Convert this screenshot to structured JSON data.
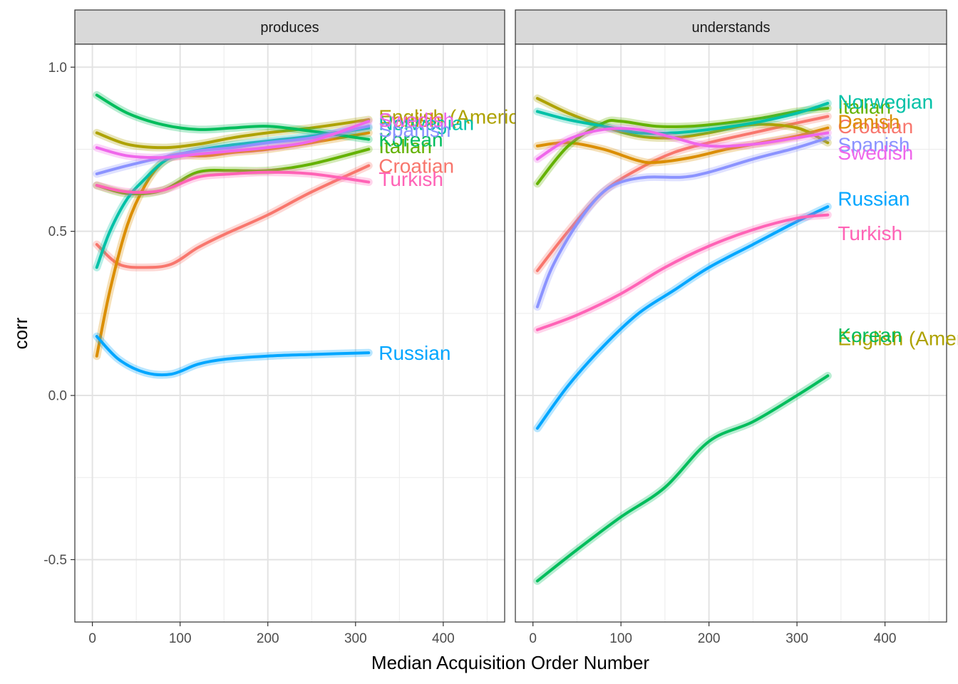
{
  "chart_data": {
    "type": "line",
    "xlabel": "Median Acquisition Order Number",
    "ylabel": "corr",
    "xlim": [
      -20,
      470
    ],
    "ylim": [
      -0.69,
      1.07
    ],
    "x_ticks": [
      0,
      100,
      200,
      300,
      400
    ],
    "x_tick_labels": [
      "0",
      "100",
      "200",
      "300",
      "400"
    ],
    "y_ticks": [
      -0.5,
      0,
      0.5,
      1.0
    ],
    "y_tick_labels": [
      "-0.5",
      "0.0",
      "0.5",
      "1.0"
    ],
    "grid": true,
    "legend": "direct labels at line ends",
    "colors": {
      "Croatian": "#F8766D",
      "Danish": "#DB8E00",
      "English (American)": "#AEA200",
      "Italian": "#64B200",
      "Korean": "#00BD5C",
      "Norwegian": "#00C1A7",
      "Russian": "#00A6FF",
      "Spanish": "#8B93FF",
      "Swedish": "#EF67EB",
      "Turkish": "#FF63B6"
    },
    "panels": [
      {
        "strip": "produces",
        "series": [
          {
            "name": "Croatian",
            "label": "Croatian",
            "label_y": 0.7,
            "x": [
              5,
              30,
              60,
              90,
              120,
              150,
              200,
              250,
              315
            ],
            "y": [
              0.46,
              0.4,
              0.39,
              0.4,
              0.45,
              0.49,
              0.55,
              0.62,
              0.7
            ]
          },
          {
            "name": "Danish",
            "label": "Danish",
            "label_y": 0.84,
            "x": [
              5,
              20,
              40,
              60,
              80,
              100,
              130,
              160,
              200,
              250,
              315
            ],
            "y": [
              0.12,
              0.32,
              0.52,
              0.64,
              0.71,
              0.73,
              0.73,
              0.74,
              0.75,
              0.77,
              0.8
            ]
          },
          {
            "name": "English (American)",
            "label": "English (American)",
            "label_y": 0.85,
            "x": [
              5,
              40,
              80,
              120,
              160,
              200,
              250,
              315
            ],
            "y": [
              0.8,
              0.765,
              0.755,
              0.765,
              0.785,
              0.8,
              0.815,
              0.84
            ]
          },
          {
            "name": "Italian",
            "label": "Italian",
            "label_y": 0.76,
            "x": [
              5,
              40,
              80,
              120,
              160,
              200,
              250,
              315
            ],
            "y": [
              0.64,
              0.615,
              0.625,
              0.68,
              0.685,
              0.685,
              0.705,
              0.75
            ]
          },
          {
            "name": "Korean",
            "label": "Korean",
            "label_y": 0.78,
            "x": [
              5,
              40,
              80,
              120,
              160,
              200,
              250,
              315
            ],
            "y": [
              0.915,
              0.86,
              0.825,
              0.81,
              0.815,
              0.82,
              0.805,
              0.78
            ]
          },
          {
            "name": "Norwegian",
            "label": "Norwegian",
            "label_y": 0.83,
            "x": [
              5,
              20,
              40,
              60,
              80,
              100,
              150,
              200,
              250,
              315
            ],
            "y": [
              0.39,
              0.5,
              0.6,
              0.66,
              0.71,
              0.735,
              0.76,
              0.775,
              0.79,
              0.815
            ]
          },
          {
            "name": "Russian",
            "label": "Russian",
            "label_y": 0.13,
            "x": [
              5,
              30,
              60,
              90,
              120,
              150,
              200,
              250,
              315
            ],
            "y": [
              0.18,
              0.11,
              0.07,
              0.065,
              0.095,
              0.11,
              0.12,
              0.125,
              0.13
            ]
          },
          {
            "name": "Spanish",
            "label": "Spanish",
            "label_y": 0.81,
            "x": [
              5,
              40,
              80,
              120,
              160,
              200,
              250,
              315
            ],
            "y": [
              0.675,
              0.7,
              0.725,
              0.745,
              0.755,
              0.77,
              0.785,
              0.82
            ]
          },
          {
            "name": "Swedish",
            "label": "Swedish",
            "label_y": 0.84,
            "x": [
              5,
              40,
              80,
              120,
              160,
              200,
              250,
              315
            ],
            "y": [
              0.755,
              0.73,
              0.725,
              0.735,
              0.745,
              0.755,
              0.775,
              0.835
            ]
          },
          {
            "name": "Turkish",
            "label": "Turkish",
            "label_y": 0.66,
            "x": [
              5,
              40,
              80,
              120,
              160,
              200,
              250,
              315
            ],
            "y": [
              0.64,
              0.62,
              0.625,
              0.665,
              0.675,
              0.68,
              0.675,
              0.65
            ]
          }
        ]
      },
      {
        "strip": "understands",
        "series": [
          {
            "name": "Croatian",
            "label": "Croatian",
            "label_y": 0.82,
            "x": [
              5,
              40,
              80,
              120,
              160,
              200,
              250,
              300,
              335
            ],
            "y": [
              0.38,
              0.5,
              0.62,
              0.69,
              0.74,
              0.77,
              0.8,
              0.83,
              0.85
            ]
          },
          {
            "name": "Danish",
            "label": "Danish",
            "label_y": 0.835,
            "x": [
              5,
              40,
              80,
              120,
              140,
              180,
              220,
              260,
              300,
              335
            ],
            "y": [
              0.76,
              0.77,
              0.75,
              0.715,
              0.71,
              0.725,
              0.75,
              0.77,
              0.79,
              0.815
            ]
          },
          {
            "name": "English (American)",
            "label": "English (American)",
            "label_y": 0.175,
            "x": [
              5,
              40,
              80,
              120,
              160,
              200,
              250,
              300,
              335
            ],
            "y": [
              0.905,
              0.86,
              0.82,
              0.79,
              0.785,
              0.8,
              0.825,
              0.815,
              0.77
            ]
          },
          {
            "name": "Italian",
            "label": "Italian",
            "label_y": 0.88,
            "x": [
              5,
              40,
              80,
              100,
              140,
              180,
              220,
              260,
              300,
              335
            ],
            "y": [
              0.645,
              0.76,
              0.83,
              0.835,
              0.82,
              0.82,
              0.83,
              0.845,
              0.865,
              0.875
            ]
          },
          {
            "name": "Korean",
            "label": "Korean",
            "label_y": 0.185,
            "x": [
              5,
              50,
              100,
              150,
              200,
              250,
              300,
              335
            ],
            "y": [
              -0.565,
              -0.47,
              -0.37,
              -0.28,
              -0.14,
              -0.08,
              0.0,
              0.06
            ]
          },
          {
            "name": "Norwegian",
            "label": "Norwegian",
            "label_y": 0.895,
            "x": [
              5,
              40,
              80,
              120,
              160,
              200,
              250,
              300,
              335
            ],
            "y": [
              0.865,
              0.84,
              0.82,
              0.8,
              0.8,
              0.81,
              0.83,
              0.86,
              0.89
            ]
          },
          {
            "name": "Russian",
            "label": "Russian",
            "label_y": 0.6,
            "x": [
              5,
              40,
              80,
              120,
              160,
              200,
              250,
              300,
              335
            ],
            "y": [
              -0.1,
              0.03,
              0.15,
              0.25,
              0.32,
              0.39,
              0.46,
              0.53,
              0.575
            ]
          },
          {
            "name": "Spanish",
            "label": "Spanish",
            "label_y": 0.765,
            "x": [
              5,
              20,
              40,
              60,
              80,
              100,
              130,
              170,
              200,
              250,
              300,
              335
            ],
            "y": [
              0.27,
              0.38,
              0.48,
              0.56,
              0.62,
              0.65,
              0.665,
              0.665,
              0.68,
              0.72,
              0.755,
              0.785
            ]
          },
          {
            "name": "Swedish",
            "label": "Swedish",
            "label_y": 0.74,
            "x": [
              5,
              40,
              80,
              120,
              160,
              200,
              250,
              300,
              335
            ],
            "y": [
              0.72,
              0.78,
              0.81,
              0.81,
              0.785,
              0.76,
              0.765,
              0.785,
              0.8
            ]
          },
          {
            "name": "Turkish",
            "label": "Turkish",
            "label_y": 0.495,
            "x": [
              5,
              50,
              100,
              150,
              200,
              250,
              300,
              335
            ],
            "y": [
              0.2,
              0.245,
              0.31,
              0.39,
              0.455,
              0.505,
              0.54,
              0.55
            ]
          }
        ]
      }
    ]
  }
}
